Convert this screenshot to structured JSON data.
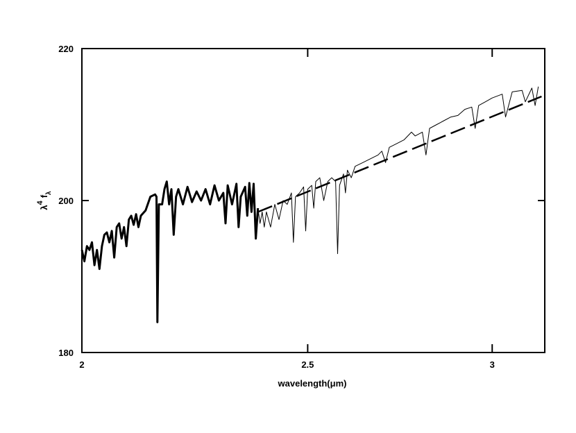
{
  "chart_data": {
    "type": "line",
    "xlabel": "wavelength(μm)",
    "ylabel": [
      "λ",
      "4",
      "f",
      "λ"
    ],
    "xscale": "log",
    "xlim": [
      2,
      3.16
    ],
    "xticks": [
      2,
      2.5,
      3
    ],
    "ylim": [
      180,
      220
    ],
    "yticks": [
      180,
      200,
      220
    ],
    "series": [
      {
        "color": "#000000",
        "line_width": 3,
        "linestyle": "solid",
        "x": [
          2.0,
          2.005,
          2.01,
          2.015,
          2.02,
          2.025,
          2.03,
          2.035,
          2.04,
          2.045,
          2.05,
          2.055,
          2.06,
          2.065,
          2.07,
          2.075,
          2.08,
          2.085,
          2.09,
          2.095,
          2.1,
          2.105,
          2.11,
          2.115,
          2.12,
          2.13,
          2.14,
          2.15,
          2.153,
          2.155,
          2.158,
          2.165,
          2.17,
          2.175,
          2.18,
          2.185,
          2.19,
          2.195,
          2.2,
          2.21,
          2.22,
          2.23,
          2.24,
          2.25,
          2.26,
          2.27,
          2.28,
          2.29,
          2.3,
          2.305,
          2.31,
          2.32,
          2.33,
          2.335,
          2.34,
          2.35,
          2.355,
          2.36,
          2.365,
          2.37,
          2.375,
          2.38
        ],
        "values": [
          193.5,
          192,
          194,
          193.5,
          194.5,
          191.5,
          193.5,
          191,
          194,
          195.5,
          195.8,
          194.5,
          196,
          192.5,
          196.5,
          197,
          195,
          196.5,
          194,
          197.5,
          198,
          196.8,
          198.2,
          196.5,
          198,
          198.7,
          200.5,
          200.8,
          200.5,
          184,
          199.5,
          199.5,
          201.5,
          202.5,
          199.5,
          201.5,
          195.5,
          200.5,
          201.5,
          199.5,
          201.8,
          199.8,
          201.2,
          200,
          201.5,
          199.5,
          202,
          200,
          201,
          197,
          202,
          199.5,
          202.2,
          196.5,
          200.5,
          201.8,
          198,
          202.3,
          198.5,
          202.2,
          195,
          199
        ]
      },
      {
        "color": "#000000",
        "line_width": 1,
        "linestyle": "solid",
        "x": [
          2.38,
          2.385,
          2.39,
          2.395,
          2.4,
          2.41,
          2.42,
          2.43,
          2.44,
          2.45,
          2.46,
          2.465,
          2.47,
          2.48,
          2.49,
          2.495,
          2.5,
          2.51,
          2.515,
          2.52,
          2.53,
          2.54,
          2.55,
          2.56,
          2.57,
          2.575,
          2.58,
          2.59,
          2.595,
          2.6,
          2.61,
          2.62,
          2.64,
          2.66,
          2.68,
          2.69,
          2.7,
          2.71,
          2.73,
          2.75,
          2.77,
          2.78,
          2.8,
          2.81,
          2.82,
          2.84,
          2.86,
          2.88,
          2.9,
          2.92,
          2.94,
          2.95,
          2.96,
          2.98,
          3.0,
          3.03,
          3.04,
          3.06,
          3.09,
          3.1,
          3.12,
          3.13,
          3.14
        ],
        "values": [
          199,
          197,
          198.5,
          196.5,
          198.5,
          196.5,
          199.5,
          197.5,
          200,
          199.5,
          201,
          194.5,
          200.5,
          201,
          201.8,
          196,
          201.5,
          202,
          199,
          202.5,
          203,
          200,
          202.5,
          203,
          202.5,
          193,
          202,
          203.5,
          201,
          204,
          203,
          204.5,
          205,
          205.5,
          206,
          206.5,
          205,
          207,
          207.5,
          208,
          209,
          208.5,
          209,
          206,
          209.5,
          210,
          210.5,
          211,
          211.2,
          212,
          212.3,
          209.5,
          212.5,
          213,
          213.5,
          214,
          211,
          214.3,
          214.5,
          213,
          214.8,
          212.5,
          215
        ]
      },
      {
        "color": "#000000",
        "line_width": 2.5,
        "linestyle": "dashed",
        "x": [
          2.38,
          3.15
        ],
        "values": [
          198.5,
          213.7
        ]
      }
    ]
  }
}
